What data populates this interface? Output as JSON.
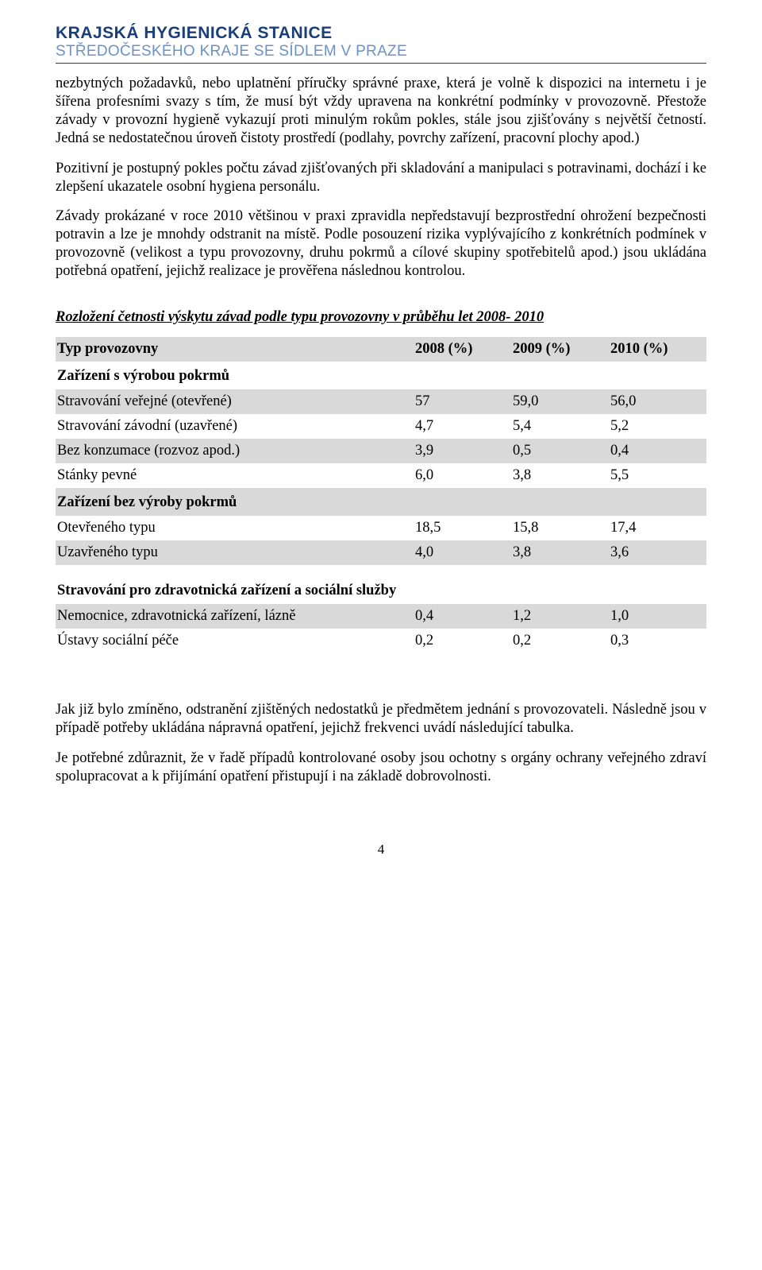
{
  "logo": {
    "line1": "KRAJSKÁ HYGIENICKÁ STANICE",
    "line2": "STŘEDOČESKÉHO KRAJE SE SÍDLEM V PRAZE"
  },
  "paragraphs": {
    "p1": "nezbytných požadavků, nebo uplatnění příručky správné praxe, která je volně k dispozici na internetu i je šířena profesními svazy s tím, že musí být vždy  upravena na konkrétní podmínky v provozovně.  Přestože  závady  v provozní hygieně vykazují proti minulým rokům pokles, stále jsou zjišťovány s největší četností. Jedná se nedostatečnou úroveň čistoty prostředí (podlahy, povrchy zařízení, pracovní plochy apod.)",
    "p2": "Pozitivní je postupný pokles počtu závad zjišťovaných při skladování a manipulaci s potravinami, dochází i ke zlepšení ukazatele osobní hygiena personálu.",
    "p3": "Závady prokázané v roce 2010 většinou  v praxi zpravidla nepředstavují bezprostřední ohrožení bezpečnosti potravin a lze je mnohdy odstranit na místě. Podle posouzení rizika vyplývajícího  z konkrétních podmínek v provozovně (velikost a typu provozovny, druhu pokrmů a cílové skupiny spotřebitelů apod.) jsou ukládána potřebná opatření, jejichž realizace je prověřena následnou kontrolou.",
    "p4": "Jak již bylo zmíněno, odstranění zjištěných nedostatků je předmětem jednání s provozovateli. Následně jsou v případě potřeby ukládána nápravná opatření, jejichž frekvenci uvádí následující tabulka.",
    "p5": "Je potřebné zdůraznit, že v řadě případů kontrolované osoby  jsou ochotny s orgány ochrany veřejného zdraví spolupracovat a k přijímání opatření přistupují i na základě dobrovolnosti."
  },
  "section_title": "Rozložení četnosti výskytu závad podle typu provozovny v průběhu let 2008- 2010",
  "table": {
    "header": {
      "c0": "Typ provozovny",
      "c1": "2008 (%)",
      "c2": "2009 (%)",
      "c3": "2010 (%)"
    },
    "cat1": "Zařízení s výrobou pokrmů",
    "r1": {
      "c0": "Stravování veřejné (otevřené)",
      "c1": "57",
      "c2": "59,0",
      "c3": "56,0"
    },
    "r2": {
      "c0": "Stravování závodní (uzavřené)",
      "c1": "4,7",
      "c2": "5,4",
      "c3": "5,2"
    },
    "r3": {
      "c0": "Bez konzumace (rozvoz apod.)",
      "c1": "3,9",
      "c2": "0,5",
      "c3": "0,4"
    },
    "r4": {
      "c0": "Stánky pevné",
      "c1": "6,0",
      "c2": "3,8",
      "c3": "5,5"
    },
    "cat2": "Zařízení bez výroby pokrmů",
    "r5": {
      "c0": "Otevřeného typu",
      "c1": "18,5",
      "c2": "15,8",
      "c3": "17,4"
    },
    "r6": {
      "c0": "Uzavřeného typu",
      "c1": "4,0",
      "c2": "3,8",
      "c3": "3,6"
    },
    "cat3": "Stravování pro zdravotnická zařízení a sociální služby",
    "r7": {
      "c0": "Nemocnice, zdravotnická zařízení, lázně",
      "c1": "0,4",
      "c2": "1,2",
      "c3": "1,0"
    },
    "r8": {
      "c0": "Ústavy sociální péče",
      "c1": "0,2",
      "c2": "0,2",
      "c3": "0,3"
    }
  },
  "page_number": "4"
}
